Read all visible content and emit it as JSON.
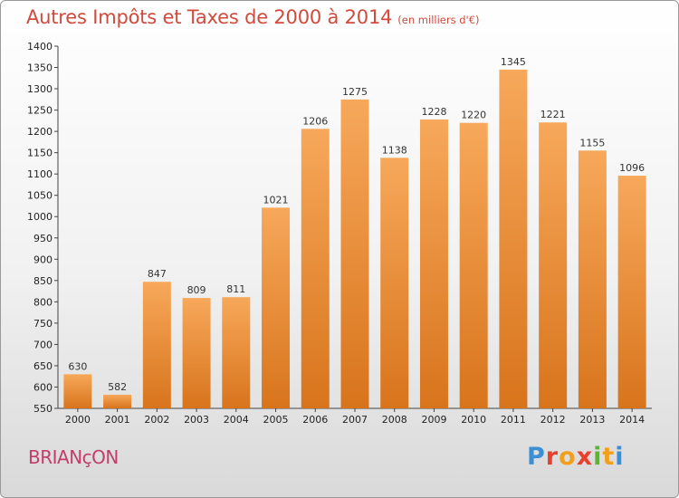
{
  "title": "Autres Impôts et Taxes de 2000 à 2014",
  "subtitle": "(en milliers d'€)",
  "city": "BRIANçON",
  "logo": {
    "letters": [
      "P",
      "r",
      "o",
      "x",
      "i",
      "t",
      "i"
    ],
    "colors": [
      "#3a8fd6",
      "#e8402f",
      "#f2a01a",
      "#e8402f",
      "#5bb531",
      "#f2a01a",
      "#3a8fd6"
    ]
  },
  "colors": {
    "bar_top": "#f7a85a",
    "bar_bottom": "#d8741c",
    "title": "#d14a3c",
    "city": "#c23d6b"
  },
  "chart_data": {
    "type": "bar",
    "title": "Autres Impôts et Taxes de 2000 à 2014",
    "subtitle": "(en milliers d'€)",
    "categories": [
      "2000",
      "2001",
      "2002",
      "2003",
      "2004",
      "2005",
      "2006",
      "2007",
      "2008",
      "2009",
      "2010",
      "2011",
      "2012",
      "2013",
      "2014"
    ],
    "values": [
      630,
      582,
      847,
      809,
      811,
      1021,
      1206,
      1275,
      1138,
      1228,
      1220,
      1345,
      1221,
      1155,
      1096
    ],
    "ylim": [
      550,
      1400
    ],
    "yticks": [
      550,
      600,
      650,
      700,
      750,
      800,
      850,
      900,
      950,
      1000,
      1050,
      1100,
      1150,
      1200,
      1250,
      1300,
      1350,
      1400
    ],
    "grid": false,
    "xlabel": "",
    "ylabel": ""
  }
}
